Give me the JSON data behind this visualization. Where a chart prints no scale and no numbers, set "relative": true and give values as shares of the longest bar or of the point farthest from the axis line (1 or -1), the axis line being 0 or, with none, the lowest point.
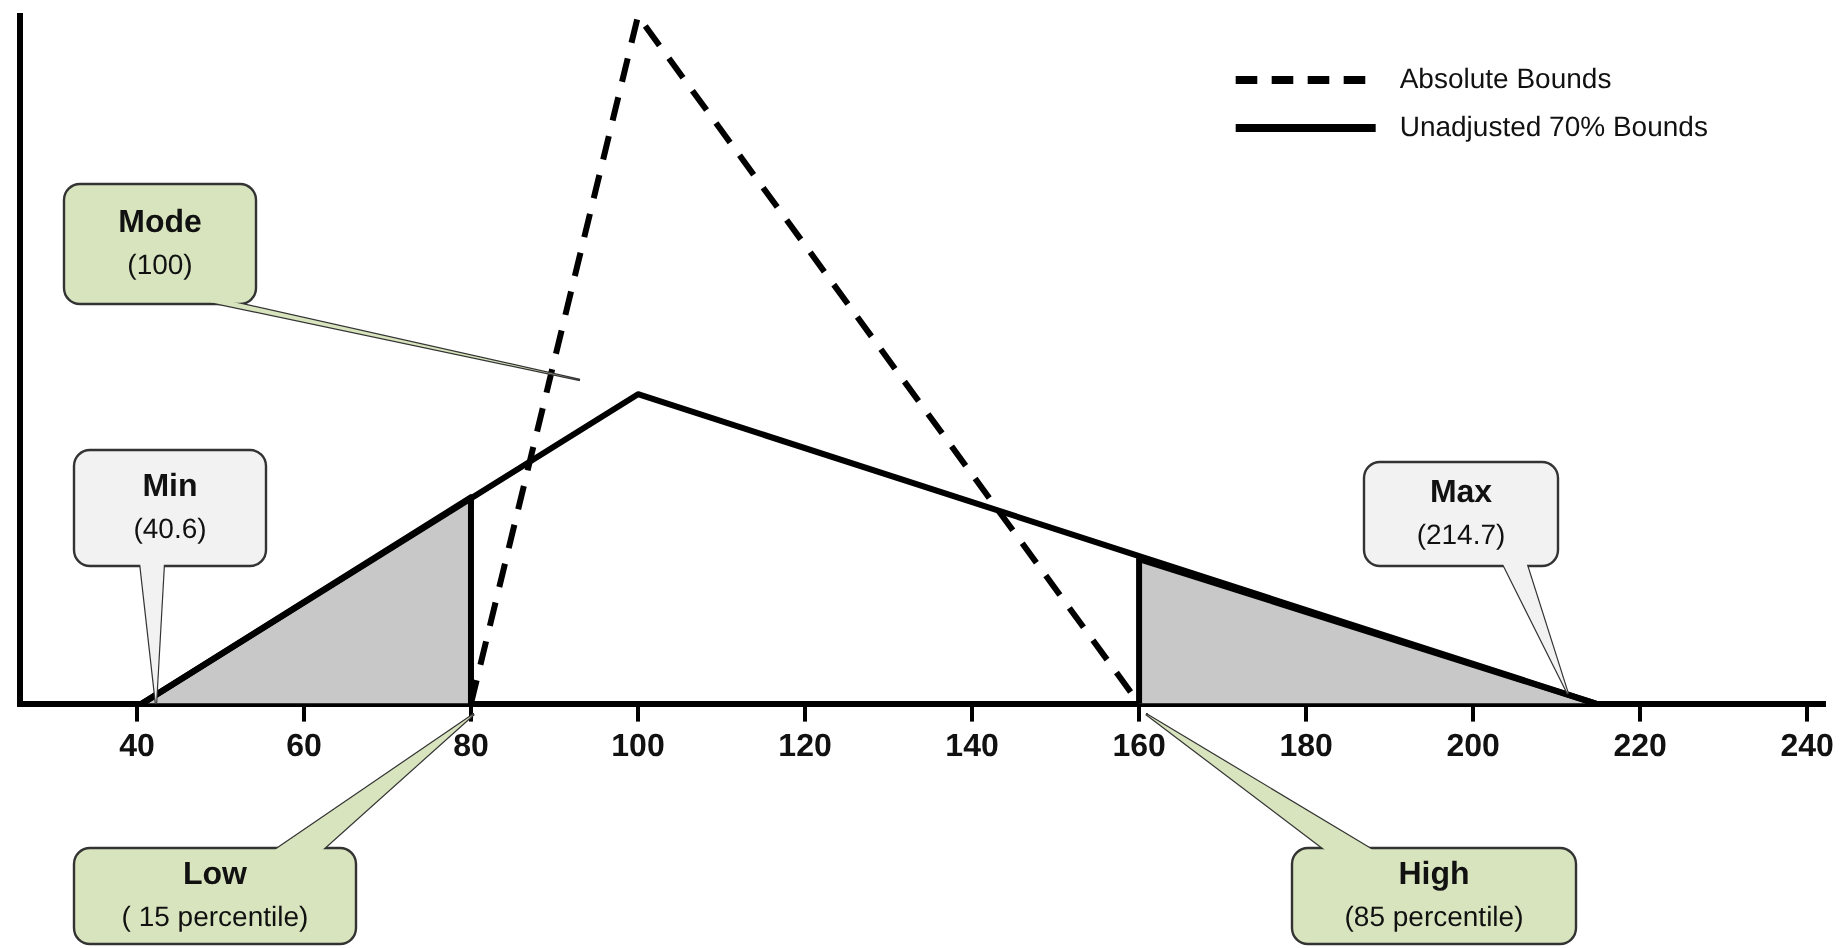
{
  "chart_data": {
    "type": "line",
    "relative": true,
    "xlim": [
      26,
      242
    ],
    "xticks": [
      40,
      60,
      80,
      100,
      120,
      140,
      160,
      180,
      200,
      220,
      240
    ],
    "tick_labels": "x",
    "grid": false,
    "legend": "top right",
    "marker": "none",
    "series": [
      {
        "type": "area",
        "color": "#c8c8c8",
        "x": [
          40.6,
          80,
          80
        ],
        "values": [
          0,
          0.3,
          0
        ]
      },
      {
        "type": "area",
        "color": "#c8c8c8",
        "x": [
          160,
          160,
          214.7
        ],
        "values": [
          0,
          0.21,
          0
        ]
      },
      {
        "name": "Absolute Bounds",
        "color": "#000000",
        "line_style": "dashed",
        "x": [
          80,
          100,
          160
        ],
        "values": [
          0,
          1,
          0
        ]
      },
      {
        "name": "Unadjusted 70% Bounds",
        "color": "#000000",
        "line_style": "solid",
        "x": [
          40.6,
          100,
          214.7
        ],
        "values": [
          0,
          0.45,
          0
        ]
      }
    ],
    "annotations": [
      "Mode\n(100)",
      "Min\n(40.6)",
      "Low\n( 15 percentile)",
      "High\n(85 percentile)",
      "Max\n(214.7)"
    ]
  }
}
